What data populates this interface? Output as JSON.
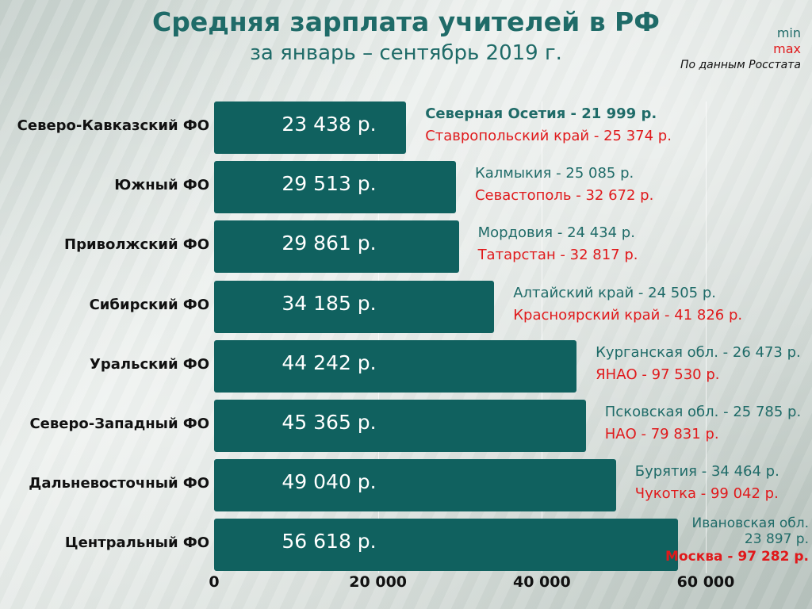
{
  "chart_data": {
    "type": "bar",
    "orientation": "horizontal",
    "title": "Средняя зарплата учителей в РФ",
    "subtitle": "за январь – сентябрь 2019 г.",
    "legend": {
      "min_label": "min",
      "max_label": "max",
      "source": "По данным Росстата",
      "placement": "top-right"
    },
    "xlim": [
      0,
      60000
    ],
    "ticks": [
      {
        "value": 0,
        "label": "0"
      },
      {
        "value": 20000,
        "label": "20 000"
      },
      {
        "value": 40000,
        "label": "40 000"
      },
      {
        "value": 60000,
        "label": "60 000"
      }
    ],
    "categories": [
      "Северо-Кавказский ФО",
      "Южный ФО",
      "Приволжский ФО",
      "Сибирский ФО",
      "Уральский ФО",
      "Северо-Западный ФО",
      "Дальневосточный ФО",
      "Центральный ФО"
    ],
    "values": [
      23438,
      29513,
      29861,
      34185,
      44242,
      45365,
      49040,
      56618
    ],
    "value_labels": [
      "23 438 р.",
      "29 513 р.",
      "29 861 р.",
      "34 185 р.",
      "44 242 р.",
      "45 365 р.",
      "49 040 р.",
      "56 618 р."
    ],
    "annotations": [
      {
        "min": "Северная Осетия - 21 999 р.",
        "max": "Ставропольский край - 25 374 р.",
        "min_bold": true
      },
      {
        "min": "Калмыкия - 25 085 р.",
        "max": "Севастополь - 32 672 р."
      },
      {
        "min": "Мордовия - 24 434 р.",
        "max": "Татарстан - 32 817 р."
      },
      {
        "min": "Алтайский край - 24 505 р.",
        "max": "Красноярский край - 41 826 р."
      },
      {
        "min": "Курганская обл. - 26 473 р.",
        "max": "ЯНАО - 97 530 р."
      },
      {
        "min": "Псковская обл. - 25 785 р.",
        "max": "НАО - 79 831 р."
      },
      {
        "min": "Бурятия - 34 464 р.",
        "max": "Чукотка - 99 042 р."
      },
      {
        "min_line1": "Ивановская обл.",
        "min_line2": "23 897 р.",
        "max": "Москва - 97 282 р.",
        "max_bold": true
      }
    ],
    "colors": {
      "bar": "#10615f",
      "min": "#1f6b68",
      "max": "#e0191b",
      "title": "#1f6b68"
    }
  }
}
